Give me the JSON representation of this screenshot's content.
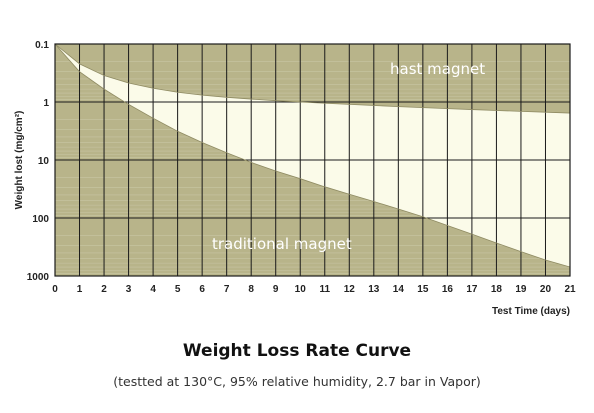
{
  "chart_data": {
    "type": "area",
    "title": "Weight Loss Rate Curve",
    "subtitle": "(testted at 130°C, 95% relative humidity, 2.7 bar in Vapor)",
    "xlabel": "Test Time (days)",
    "ylabel": "Weight lost (mg/cm²)",
    "y_scale": "log",
    "y_inverted": true,
    "xlim": [
      0,
      21
    ],
    "ylim": [
      0.1,
      1000
    ],
    "x_ticks": [
      "0",
      "1",
      "2",
      "3",
      "4",
      "5",
      "6",
      "7",
      "8",
      "9",
      "10",
      "11",
      "12",
      "13",
      "14",
      "15",
      "16",
      "17",
      "18",
      "19",
      "20",
      "21"
    ],
    "y_ticks": [
      "0.1",
      "1",
      "10",
      "100",
      "1000"
    ],
    "grid": true,
    "colors": {
      "region_fill": "#b8b48a",
      "band_fill": "#fbfbe9",
      "grid": "#1a1a1a",
      "minor_grid": "#c8c6a4"
    },
    "series": [
      {
        "name": "hast magnet",
        "x": [
          0,
          1,
          2,
          3,
          4,
          5,
          6,
          7,
          8,
          9,
          10,
          11,
          12,
          13,
          14,
          15,
          16,
          17,
          18,
          19,
          20,
          21
        ],
        "y": [
          0.1,
          0.22,
          0.35,
          0.47,
          0.58,
          0.68,
          0.76,
          0.83,
          0.89,
          0.95,
          1.0,
          1.05,
          1.1,
          1.15,
          1.2,
          1.25,
          1.3,
          1.35,
          1.4,
          1.45,
          1.5,
          1.55
        ]
      },
      {
        "name": "traditional magnet",
        "x": [
          0,
          1,
          2,
          3,
          4,
          5,
          6,
          7,
          8,
          9,
          10,
          11,
          12,
          13,
          14,
          15,
          16,
          17,
          18,
          19,
          20,
          21
        ],
        "y": [
          0.1,
          0.3,
          0.6,
          1.1,
          1.9,
          3.2,
          5.0,
          7.5,
          11,
          15.5,
          21,
          29,
          39,
          52,
          70,
          95,
          135,
          190,
          270,
          380,
          530,
          700
        ]
      }
    ]
  }
}
